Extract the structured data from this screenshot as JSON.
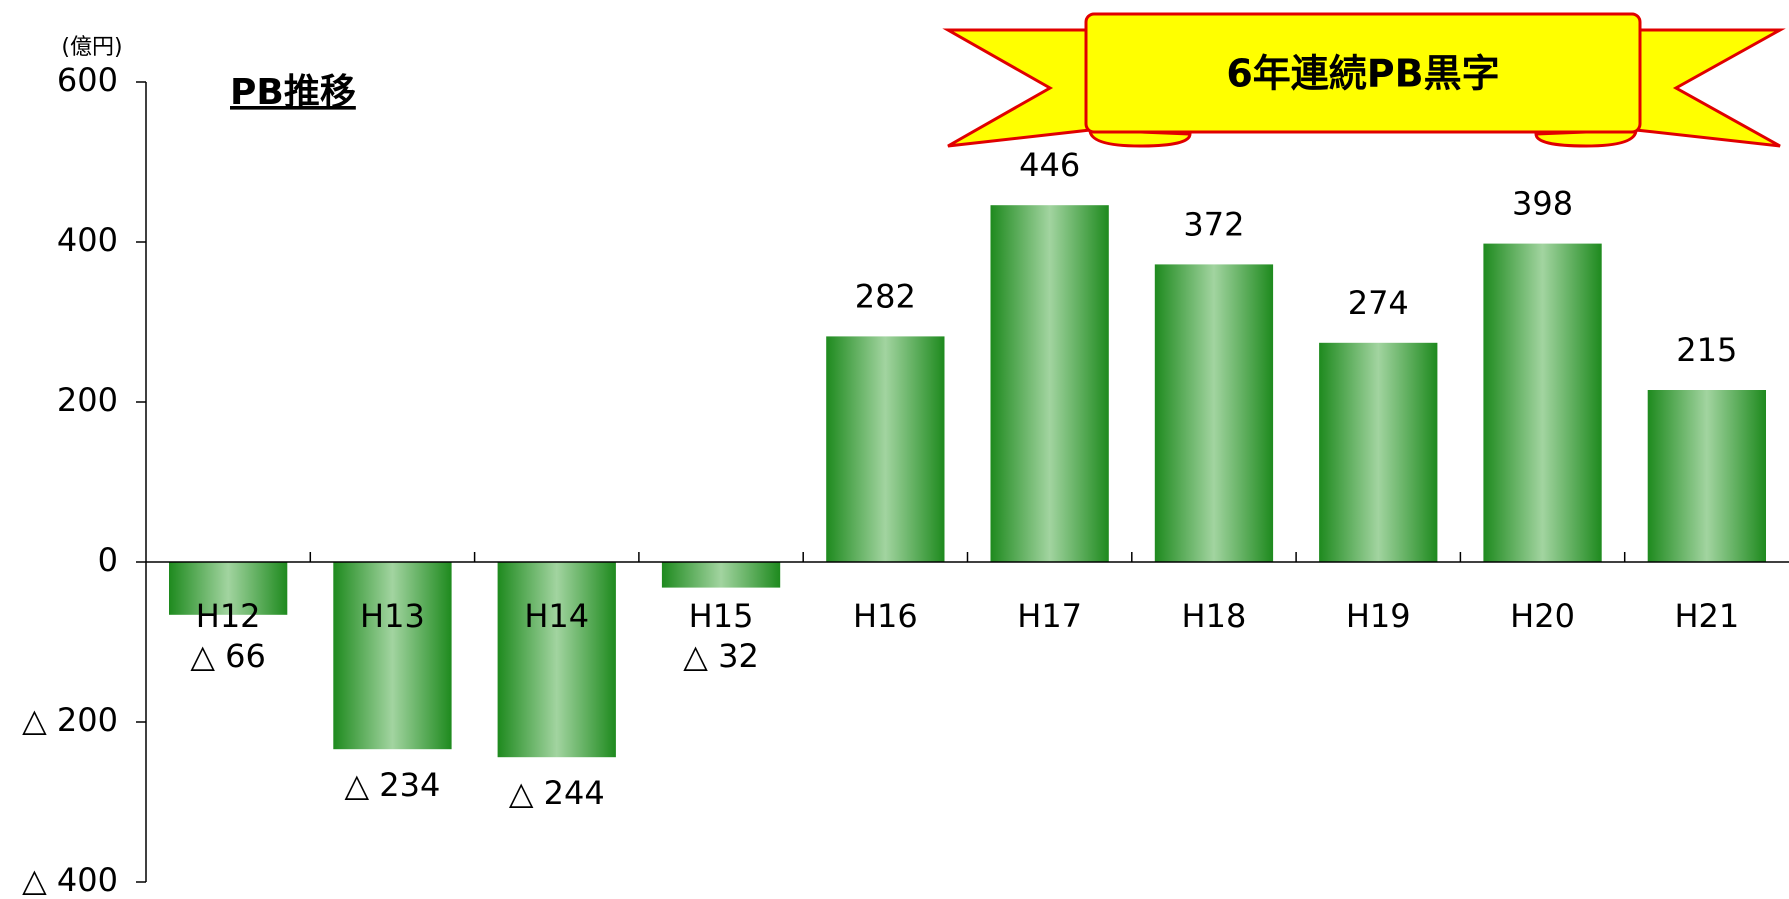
{
  "chart_data": {
    "type": "bar",
    "title": "PB推移",
    "unit_label": "(億円)",
    "annotation": "6年連続PB黒字",
    "categories": [
      "H12",
      "H13",
      "H14",
      "H15",
      "H16",
      "H17",
      "H18",
      "H19",
      "H20",
      "H21"
    ],
    "values": [
      -66,
      -234,
      -244,
      -32,
      282,
      446,
      372,
      274,
      398,
      215
    ],
    "value_labels": [
      "△ 66",
      "△ 234",
      "△ 244",
      "△ 32",
      "282",
      "446",
      "372",
      "274",
      "398",
      "215"
    ],
    "color": "#1e8a1e",
    "ylim": [
      -400,
      600
    ],
    "yticks": [
      {
        "value": -400,
        "label": "△ 400"
      },
      {
        "value": -200,
        "label": "△ 200"
      },
      0,
      200,
      400,
      600
    ],
    "grid": false
  }
}
